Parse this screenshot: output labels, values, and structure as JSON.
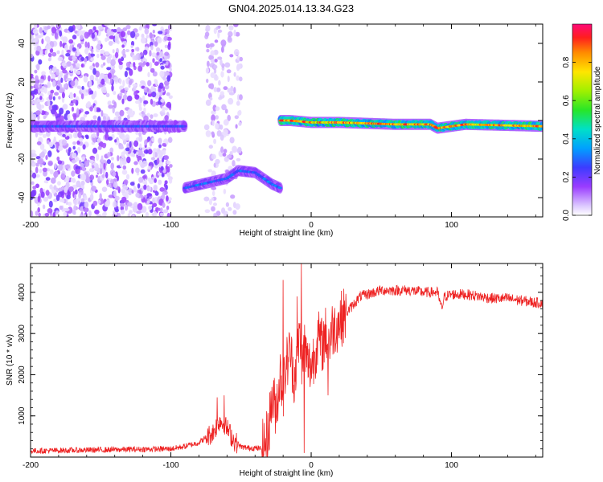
{
  "title": "GN04.2025.014.13.34.G23",
  "chart_data": [
    {
      "type": "heatmap",
      "xlabel": "Height of straight line (km)",
      "ylabel": "Frequency (Hz)",
      "xlim": [
        -200,
        165
      ],
      "ylim": [
        -50,
        50
      ],
      "xticks": [
        -200,
        -100,
        0,
        100
      ],
      "yticks": [
        -40,
        -20,
        0,
        20,
        40
      ],
      "colorbar": {
        "label": "Normalized spectral amplitude",
        "ticks": [
          0.0,
          0.2,
          0.4,
          0.6,
          0.8
        ],
        "range": [
          0,
          1
        ],
        "colormap": "rainbow"
      },
      "ridges": [
        {
          "x": [
            -200,
            -90
          ],
          "y": [
            -3,
            -3
          ],
          "amplitude": 0.22,
          "note": "noisy"
        },
        {
          "x": [
            -90,
            -60,
            -52,
            -40,
            -28,
            -22
          ],
          "y": [
            -35,
            -30,
            -26,
            -27,
            -33,
            -35
          ],
          "amplitude": 0.25
        },
        {
          "x": [
            -22,
            -15,
            0,
            20,
            60,
            85,
            90,
            110,
            165
          ],
          "y": [
            0,
            0,
            -1,
            -1,
            -2,
            -2,
            -4,
            -2,
            -3
          ],
          "amplitude": 0.7
        }
      ],
      "noise_regions": [
        {
          "x": [
            -200,
            -100
          ],
          "y": [
            -50,
            50
          ],
          "density": "high"
        },
        {
          "x": [
            -75,
            -50
          ],
          "y": [
            -50,
            50
          ],
          "density": "low"
        }
      ]
    },
    {
      "type": "line",
      "xlabel": "Height of straight line (km)",
      "ylabel": "SNR (10 * v/v)",
      "xlim": [
        -200,
        165
      ],
      "ylim": [
        0,
        4700
      ],
      "xticks": [
        -200,
        -100,
        0,
        100
      ],
      "yticks": [
        1000,
        2000,
        3000,
        4000
      ],
      "color": "#ee2222",
      "series": [
        {
          "x": [
            -200,
            -180,
            -160,
            -140,
            -120,
            -100,
            -90,
            -80,
            -70,
            -65,
            -60,
            -55,
            -50,
            -45,
            -40,
            -35,
            -32,
            -30,
            -28,
            -25,
            -22,
            -20,
            -18,
            -15,
            -12,
            -10,
            -8,
            -6,
            -5,
            -3,
            0,
            3,
            5,
            8,
            10,
            13,
            15,
            18,
            20,
            25,
            30,
            35,
            40,
            50,
            60,
            70,
            80,
            90,
            93,
            95,
            100,
            110,
            120,
            130,
            140,
            150,
            160,
            165
          ],
          "y": [
            150,
            160,
            170,
            180,
            190,
            200,
            260,
            350,
            600,
            900,
            700,
            400,
            250,
            220,
            220,
            200,
            400,
            800,
            1400,
            1200,
            2000,
            1600,
            2200,
            2600,
            1900,
            2500,
            3000,
            2100,
            2800,
            2300,
            2200,
            2600,
            2900,
            2700,
            3000,
            2800,
            3100,
            3200,
            3300,
            3500,
            3700,
            3900,
            3950,
            4050,
            4050,
            4050,
            4000,
            4000,
            3600,
            3900,
            3950,
            3950,
            3900,
            3850,
            3850,
            3800,
            3750,
            3750
          ]
        }
      ],
      "spikes": [
        {
          "x": -67,
          "y": 1450
        },
        {
          "x": -62,
          "y": 1500
        },
        {
          "x": -20,
          "y": 4300
        },
        {
          "x": -10,
          "y": 3900
        },
        {
          "x": -7,
          "y": 4700
        },
        {
          "x": -5,
          "y": 100
        },
        {
          "x": 12,
          "y": 1500
        }
      ]
    }
  ]
}
